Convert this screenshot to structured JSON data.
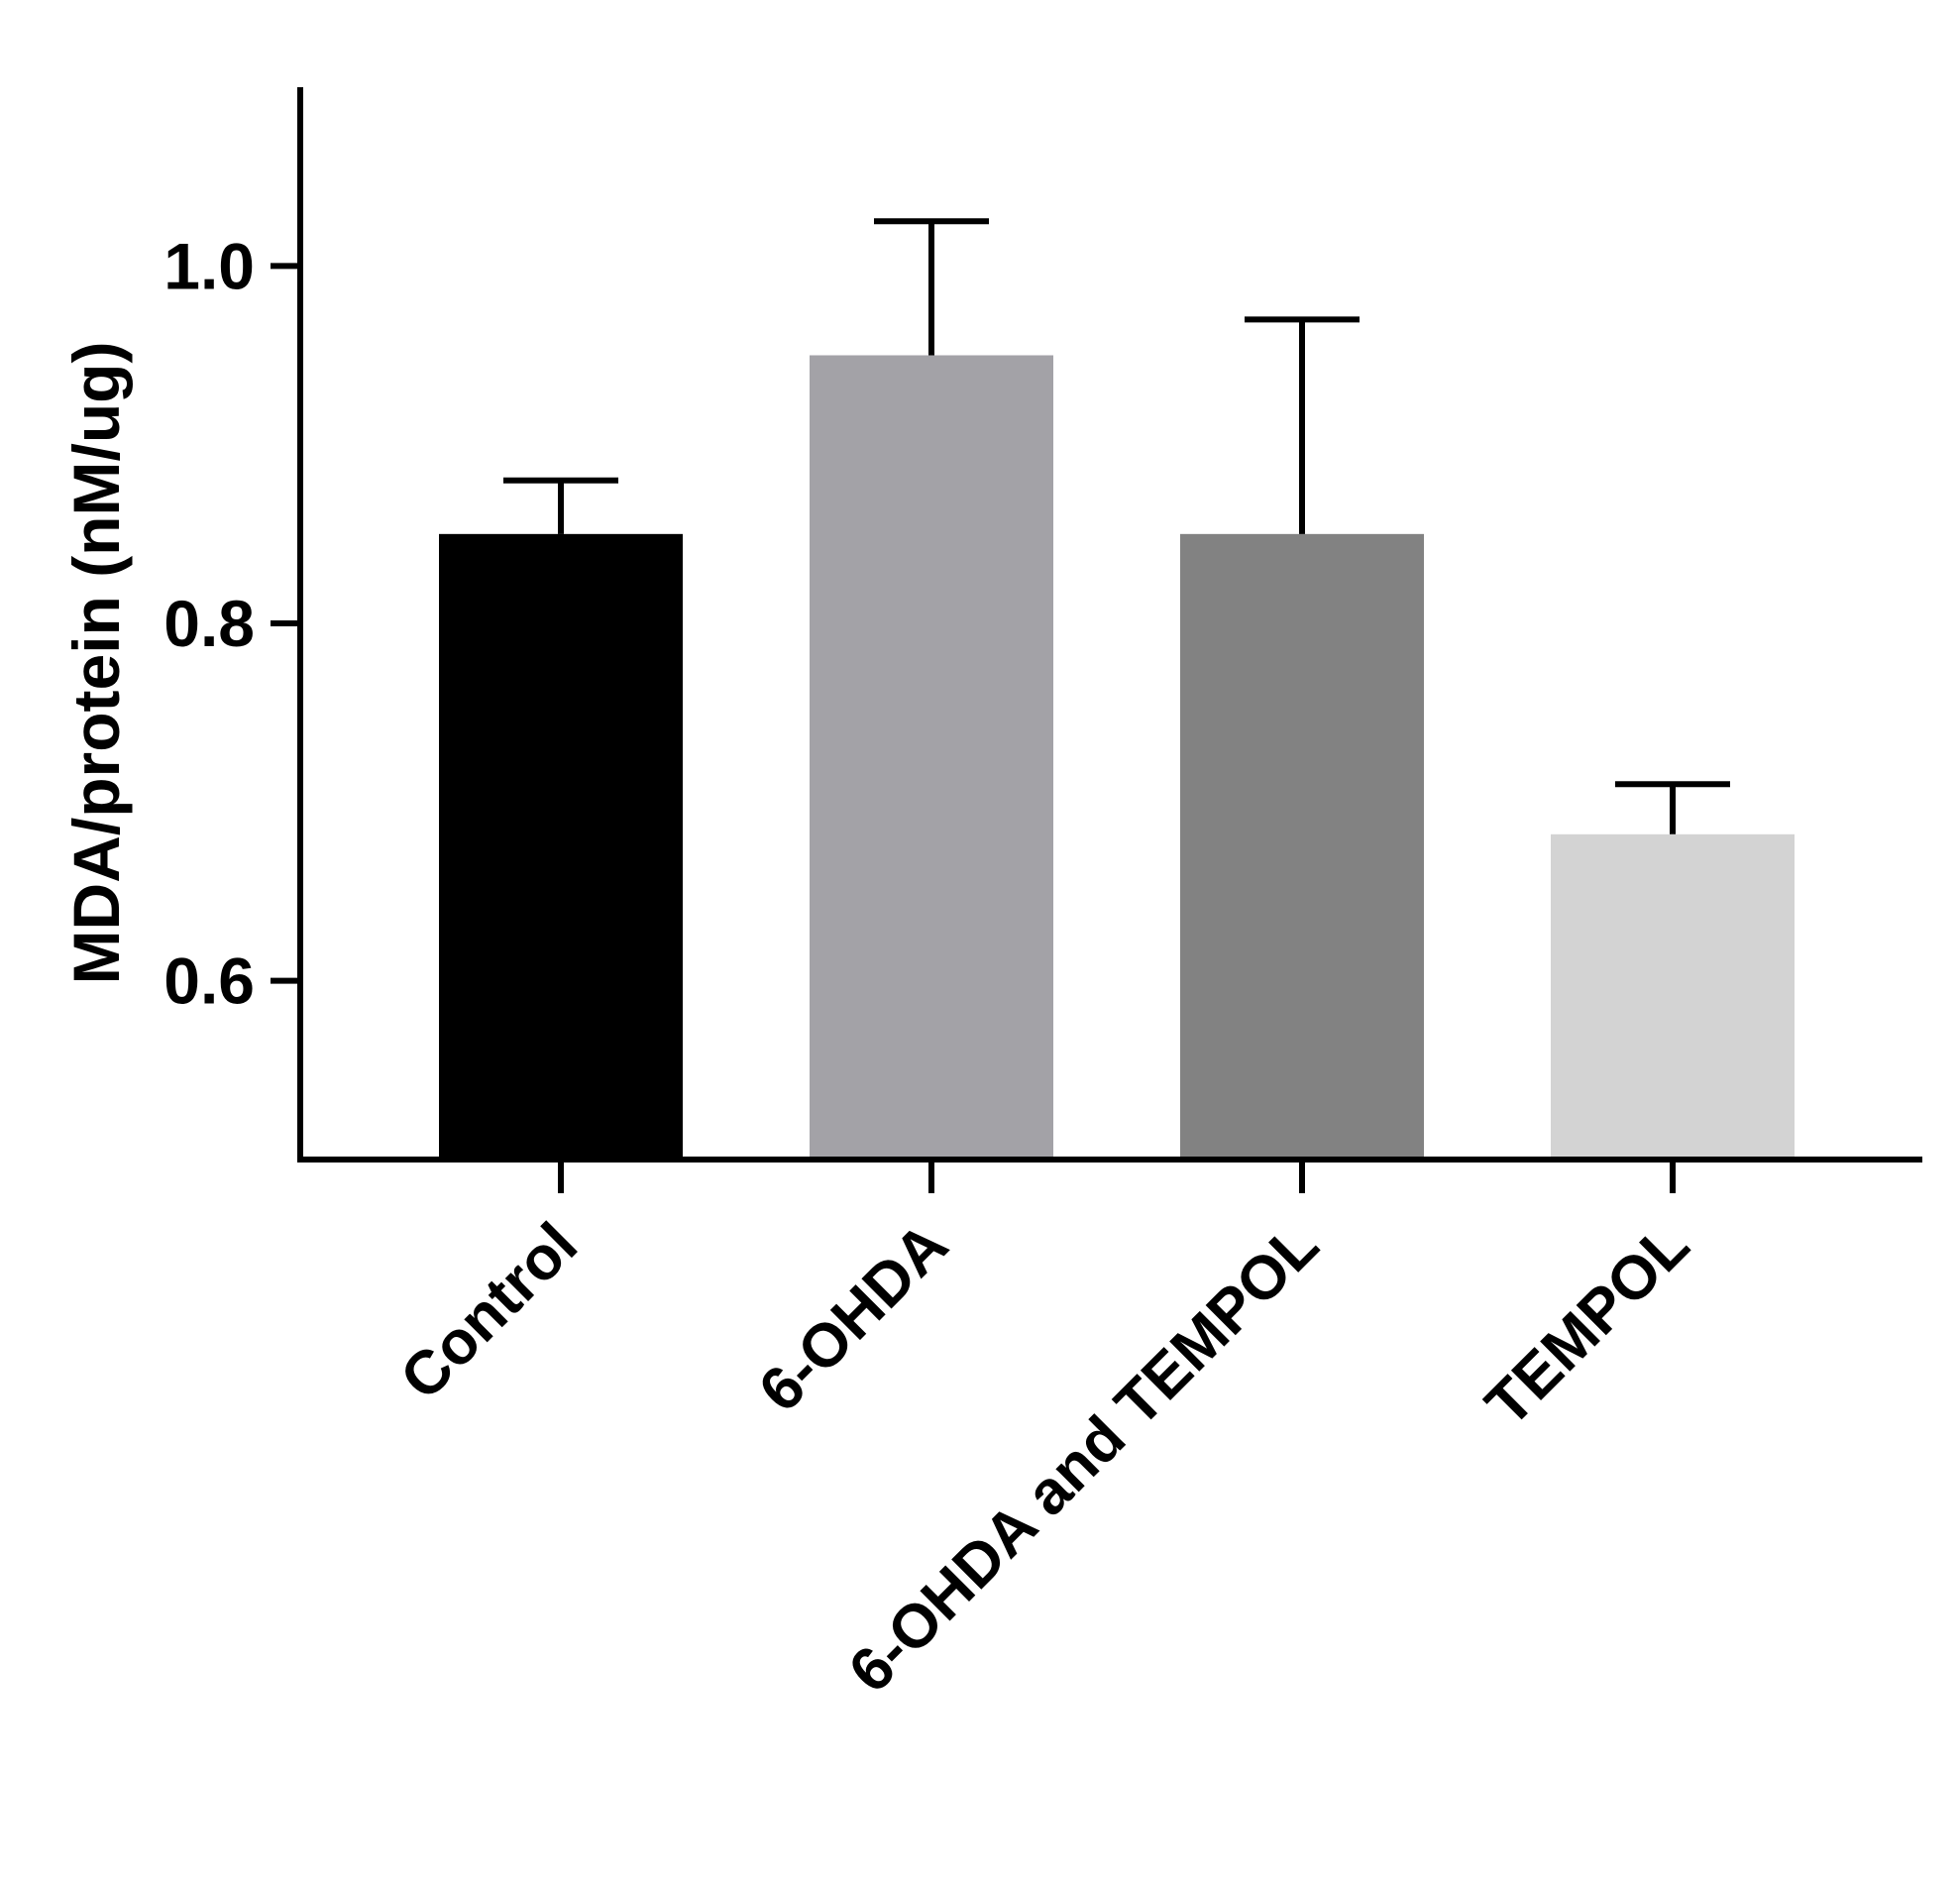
{
  "chart_data": {
    "type": "bar",
    "title": "",
    "xlabel": "",
    "ylabel": "MDA/protein (nM/ug)",
    "categories": [
      "Control",
      "6-OHDA",
      "6-OHDA and TEMPOL",
      "TEMPOL"
    ],
    "values": [
      0.85,
      0.95,
      0.85,
      0.682
    ],
    "error_upper": [
      0.88,
      1.025,
      0.97,
      0.71
    ],
    "bar_colors": [
      "#000000",
      "#a3a2a7",
      "#828282",
      "#d3d3d3"
    ],
    "ylim": [
      0.5,
      1.1
    ],
    "yticks": [
      0.6,
      0.8,
      1.0
    ],
    "ytick_labels": [
      "0.6",
      "0.8",
      "1.0"
    ],
    "grid": false,
    "legend": "none"
  }
}
